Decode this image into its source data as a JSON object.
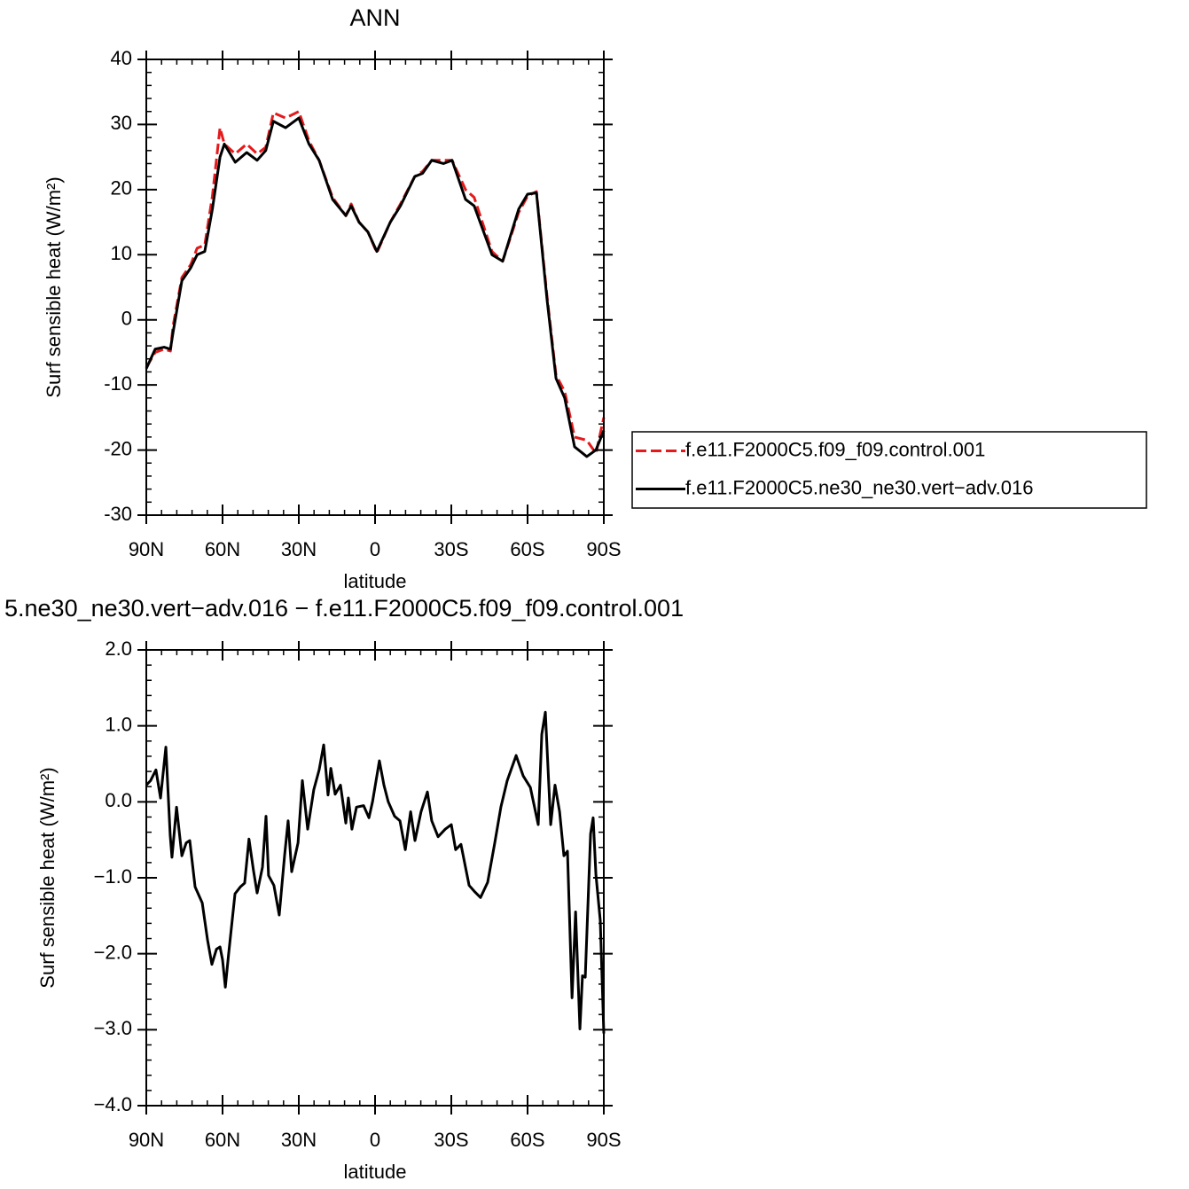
{
  "chart_data": [
    {
      "type": "line",
      "title": "ANN",
      "xlabel": "latitude",
      "ylabel": "Surf sensible heat (W/m²)",
      "x": [
        90,
        86.5,
        83,
        80.5,
        79.5,
        76,
        72.5,
        70,
        67,
        64,
        61,
        59.3,
        55,
        50.5,
        46.4,
        43,
        40,
        35.2,
        30,
        26,
        22,
        16.7,
        11.5,
        9.4,
        6.3,
        2.8,
        -0.7,
        -6,
        -10,
        -15.6,
        -18.7,
        -22.3,
        -26.9,
        -30.3,
        -35.6,
        -39,
        -46,
        -50.2,
        -56.5,
        -60,
        -63.5,
        -67.7,
        -71.2,
        -74.6,
        -78.5,
        -83.3,
        -86.9,
        -90
      ],
      "series": [
        {
          "name": "f.e11.F2000C5.f09_f09.control.001",
          "color": "#e41a1c",
          "dashed": true,
          "values": [
            -7.3,
            -5,
            -4.5,
            -4.8,
            -1,
            6.5,
            8.5,
            11,
            11.5,
            19,
            29.5,
            27,
            25.5,
            27,
            25.5,
            26.5,
            31.8,
            31,
            32,
            27.5,
            24.5,
            18.8,
            16,
            17.8,
            15,
            13.5,
            10.3,
            15,
            17.8,
            22,
            22.8,
            24.5,
            24.5,
            24.5,
            20,
            18.8,
            10.5,
            9,
            16.5,
            19,
            19.7,
            3.5,
            -8.5,
            -11,
            -18,
            -18.5,
            -20.5,
            -15
          ]
        },
        {
          "name": "f.e11.F2000C5.ne30_ne30.vert−adv.016",
          "color": "#000000",
          "dashed": false,
          "values": [
            -7.5,
            -4.5,
            -4.2,
            -4.5,
            -2,
            6,
            8,
            10,
            10.5,
            17,
            25,
            27,
            24.2,
            25.7,
            24.5,
            26,
            30.5,
            29.5,
            31,
            27,
            24.5,
            18.5,
            16,
            17.5,
            15,
            13.5,
            10.5,
            15,
            17.5,
            22,
            22.5,
            24.5,
            24,
            24.5,
            18.5,
            17.5,
            10,
            9,
            17,
            19.3,
            19.5,
            3,
            -9,
            -12,
            -19.5,
            -21,
            -20,
            -17
          ]
        }
      ],
      "xlim": [
        90,
        -90
      ],
      "xticks": [
        {
          "value": 90,
          "label": "90N"
        },
        {
          "value": 60,
          "label": "60N"
        },
        {
          "value": 30,
          "label": "30N"
        },
        0,
        {
          "value": -30,
          "label": "30S"
        },
        {
          "value": -60,
          "label": "60S"
        },
        {
          "value": -90,
          "label": "90S"
        }
      ],
      "ylim": [
        -30,
        40
      ],
      "yticks": [
        40,
        30,
        20,
        10,
        0,
        -10,
        -20,
        -30
      ],
      "legend": "right"
    },
    {
      "type": "line",
      "title": "5.ne30_ne30.vert−adv.016 − f.e11.F2000C5.f09_f09.control.001",
      "xlabel": "latitude",
      "ylabel": "Surf sensible heat (W/m²)",
      "x": [
        90,
        88.3,
        86.2,
        84.4,
        82.3,
        80.6,
        79.9,
        78.1,
        76.0,
        74.3,
        72.9,
        70.8,
        68.0,
        65.9,
        64.2,
        62.4,
        61.0,
        60.0,
        58.9,
        57.6,
        55.1,
        53.0,
        51.3,
        49.6,
        47.8,
        46.4,
        44.3,
        42.9,
        41.9,
        39.8,
        37.7,
        35.6,
        34.2,
        32.8,
        30.3,
        28.6,
        26.5,
        24.1,
        22.0,
        20.2,
        18.5,
        17.4,
        15.7,
        13.6,
        11.5,
        10.5,
        9.1,
        7.3,
        4.5,
        2.4,
        1.0,
        -1.7,
        -3.5,
        -5.2,
        -7.7,
        -9.8,
        -11.9,
        -14.0,
        -15.7,
        -18.1,
        -20.6,
        -22.3,
        -24.8,
        -27.6,
        -30.0,
        -31.7,
        -33.8,
        -37.0,
        -39.1,
        -41.5,
        -44.3,
        -47.1,
        -49.5,
        -52.0,
        -55.5,
        -58.3,
        -61.1,
        -64.2,
        -65.6,
        -67.0,
        -69.1,
        -70.8,
        -72.6,
        -74.3,
        -75.7,
        -77.5,
        -78.9,
        -80.6,
        -81.6,
        -82.7,
        -84.8,
        -85.8,
        -86.9,
        -88.6,
        -90
      ],
      "series": [
        {
          "color": "#000000",
          "dashed": false,
          "values": [
            0.22,
            0.28,
            0.42,
            0.05,
            0.72,
            -0.44,
            -0.73,
            -0.07,
            -0.71,
            -0.54,
            -0.51,
            -1.12,
            -1.33,
            -1.82,
            -2.14,
            -1.94,
            -1.91,
            -2.08,
            -2.44,
            -2.0,
            -1.21,
            -1.12,
            -1.07,
            -0.49,
            -0.91,
            -1.2,
            -0.86,
            -0.19,
            -0.97,
            -1.1,
            -1.49,
            -0.71,
            -0.25,
            -0.92,
            -0.54,
            0.28,
            -0.36,
            0.16,
            0.42,
            0.75,
            0.09,
            0.44,
            0.1,
            0.22,
            -0.28,
            0.05,
            -0.36,
            -0.07,
            -0.05,
            -0.21,
            0,
            0.54,
            0.22,
            0,
            -0.19,
            -0.25,
            -0.63,
            -0.13,
            -0.51,
            -0.13,
            0.13,
            -0.25,
            -0.46,
            -0.36,
            -0.3,
            -0.63,
            -0.56,
            -1.1,
            -1.18,
            -1.26,
            -1.06,
            -0.54,
            -0.07,
            0.28,
            0.61,
            0.34,
            0.19,
            -0.3,
            0.89,
            1.18,
            -0.3,
            0.22,
            -0.13,
            -0.71,
            -0.65,
            -2.58,
            -1.45,
            -2.99,
            -2.29,
            -2.31,
            -0.42,
            -0.21,
            -0.96,
            -1.56,
            -3.05
          ]
        }
      ],
      "xlim": [
        90,
        -90
      ],
      "xticks": [
        {
          "value": 90,
          "label": "90N"
        },
        {
          "value": 60,
          "label": "60N"
        },
        {
          "value": 30,
          "label": "30N"
        },
        0,
        {
          "value": -30,
          "label": "30S"
        },
        {
          "value": -60,
          "label": "60S"
        },
        {
          "value": -90,
          "label": "90S"
        }
      ],
      "ylim": [
        -4,
        2
      ],
      "yticks": [
        {
          "value": 2,
          "label": "2.0"
        },
        {
          "value": 1,
          "label": "1.0"
        },
        {
          "value": 0,
          "label": "0.0"
        },
        {
          "value": -1,
          "label": "−1.0"
        },
        {
          "value": -2,
          "label": "−2.0"
        },
        {
          "value": -3,
          "label": "−3.0"
        },
        {
          "value": -4,
          "label": "−4.0"
        }
      ]
    }
  ]
}
